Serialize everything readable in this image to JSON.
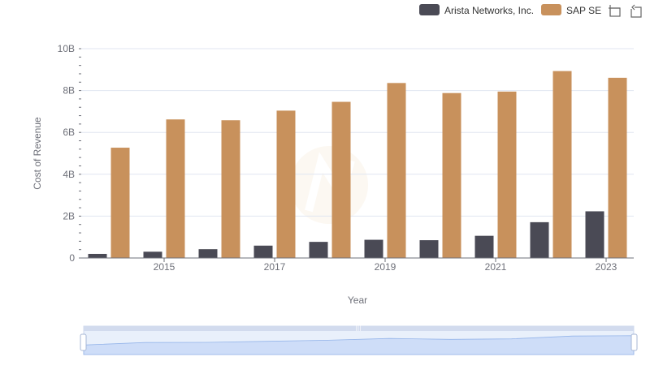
{
  "chart_data": {
    "type": "bar",
    "title": "",
    "xlabel": "Year",
    "ylabel": "Cost of Revenue",
    "categories": [
      "2014",
      "2015",
      "2016",
      "2017",
      "2018",
      "2019",
      "2020",
      "2021",
      "2022",
      "2023"
    ],
    "x_tick_labels": [
      "2015",
      "2017",
      "2019",
      "2021",
      "2023"
    ],
    "y_tick_labels": [
      "0",
      "2B",
      "4B",
      "6B",
      "8B",
      "10B"
    ],
    "y_ticks": [
      0,
      2000000000,
      4000000000,
      6000000000,
      8000000000,
      10000000000
    ],
    "ylim": [
      0,
      10000000000
    ],
    "legend_position": "top-right",
    "series": [
      {
        "name": "Arista Networks, Inc.",
        "color": "#4a4a55",
        "values": [
          195000000,
          300000000,
          420000000,
          590000000,
          770000000,
          870000000,
          850000000,
          1060000000,
          1710000000,
          2230000000
        ]
      },
      {
        "name": "SAP SE",
        "color": "#c8915c",
        "values": [
          5270000000,
          6620000000,
          6580000000,
          7040000000,
          7460000000,
          8360000000,
          7880000000,
          7950000000,
          8930000000,
          8610000000
        ]
      }
    ]
  },
  "colors": {
    "grid": "#e0e6f1",
    "axis": "#6e7079",
    "slider_fill": "#dbe6fb",
    "slider_border": "#c5d3f0",
    "slider_line": "#8fb0e8"
  },
  "icons": [
    "zoom-icon",
    "zoom-reset-icon",
    "slider-handle-icon"
  ]
}
